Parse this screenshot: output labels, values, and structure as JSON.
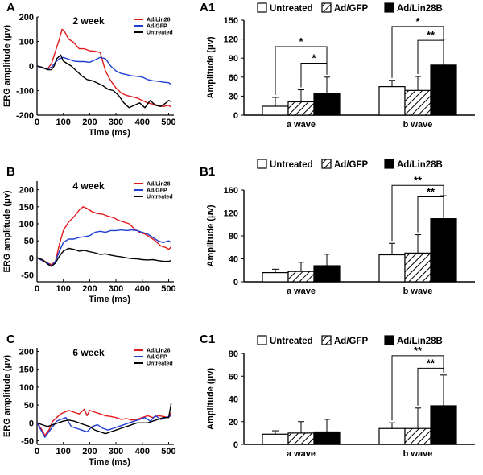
{
  "figure": {
    "panels": [
      "A",
      "A1",
      "B",
      "B1",
      "C",
      "C1"
    ]
  },
  "colors": {
    "series_red": "#e31a1c",
    "series_blue": "#1f3fd1",
    "series_black": "#000000",
    "hatch": "#000000"
  },
  "chart_data": [
    {
      "id": "A",
      "type": "line",
      "panel_label": "A",
      "title": "2 week",
      "xlabel": "Time (ms)",
      "ylabel": "ERG amplitude (μv)",
      "xlim": [
        0,
        520
      ],
      "ylim": [
        -200,
        200
      ],
      "xticks": [
        "0",
        "100",
        "200",
        "300",
        "400",
        "500"
      ],
      "xtick_values": [
        0,
        100,
        200,
        300,
        400,
        500
      ],
      "yticks": [
        "-200",
        "-100",
        "0",
        "100",
        "200"
      ],
      "ytick_values": [
        -200,
        -100,
        0,
        100,
        200
      ],
      "series": [
        {
          "name": "Ad/Lin28",
          "color": "#e31a1c",
          "x": [
            0,
            20,
            40,
            55,
            70,
            85,
            95,
            105,
            120,
            140,
            160,
            180,
            200,
            220,
            240,
            260,
            280,
            300,
            320,
            340,
            360,
            380,
            400,
            420,
            440,
            460,
            480,
            500,
            510
          ],
          "y": [
            0,
            -8,
            -12,
            10,
            60,
            110,
            150,
            140,
            110,
            95,
            70,
            70,
            62,
            60,
            55,
            -20,
            -60,
            -90,
            -110,
            -120,
            -125,
            -130,
            -140,
            -150,
            -155,
            -160,
            -165,
            -160,
            -168
          ]
        },
        {
          "name": "Ad/GFP",
          "color": "#1f3fd1",
          "x": [
            0,
            20,
            40,
            55,
            70,
            85,
            100,
            120,
            140,
            160,
            180,
            200,
            220,
            240,
            260,
            280,
            300,
            320,
            340,
            360,
            380,
            400,
            420,
            440,
            460,
            480,
            500,
            510
          ],
          "y": [
            0,
            -8,
            -12,
            -5,
            15,
            30,
            35,
            28,
            20,
            18,
            18,
            15,
            25,
            35,
            30,
            0,
            -20,
            -30,
            -35,
            -40,
            -42,
            -45,
            -55,
            -60,
            -62,
            -66,
            -68,
            -75
          ]
        },
        {
          "name": "Untreated",
          "color": "#000000",
          "x": [
            0,
            20,
            40,
            55,
            65,
            75,
            90,
            100,
            115,
            130,
            150,
            170,
            190,
            210,
            230,
            250,
            270,
            290,
            310,
            330,
            350,
            370,
            390,
            410,
            430,
            450,
            470,
            490,
            500,
            510
          ],
          "y": [
            0,
            -5,
            -15,
            -15,
            0,
            30,
            45,
            20,
            10,
            0,
            -20,
            -40,
            -55,
            -60,
            -70,
            -80,
            -95,
            -100,
            -120,
            -150,
            -170,
            -160,
            -150,
            -170,
            -140,
            -160,
            -165,
            -150,
            -140,
            -145
          ]
        }
      ],
      "legend": [
        "Ad/Lin28",
        "Ad/GFP",
        "Untreated"
      ]
    },
    {
      "id": "A1",
      "type": "bar",
      "panel_label": "A1",
      "ylabel": "Amplitude (μv)",
      "ylim": [
        0,
        150
      ],
      "yticks": [
        "0",
        "30",
        "60",
        "90",
        "120",
        "150"
      ],
      "ytick_values": [
        0,
        30,
        60,
        90,
        120,
        150
      ],
      "categories": [
        "a wave",
        "b wave"
      ],
      "legend": [
        "Untreated",
        "Ad/GFP",
        "Ad/Lin28B"
      ],
      "series": [
        {
          "name": "Untreated",
          "fill": "white",
          "values": [
            14,
            45
          ],
          "errors": [
            14,
            10
          ]
        },
        {
          "name": "Ad/GFP",
          "fill": "hatch",
          "values": [
            21,
            39
          ],
          "errors": [
            19,
            22
          ]
        },
        {
          "name": "Ad/Lin28B",
          "fill": "black",
          "values": [
            34,
            79
          ],
          "errors": [
            26,
            41
          ]
        }
      ],
      "significance": [
        {
          "category": "a wave",
          "from": "Untreated",
          "to": "Ad/Lin28B",
          "label": "*",
          "level": 108
        },
        {
          "category": "a wave",
          "from": "Ad/GFP",
          "to": "Ad/Lin28B",
          "label": "*",
          "level": 82
        },
        {
          "category": "b wave",
          "from": "Untreated",
          "to": "Ad/Lin28B",
          "label": "*",
          "level": 140
        },
        {
          "category": "b wave",
          "from": "Ad/GFP",
          "to": "Ad/Lin28B",
          "label": "**",
          "level": 118
        }
      ]
    },
    {
      "id": "B",
      "type": "line",
      "panel_label": "B",
      "title": "4 week",
      "xlabel": "Time (ms)",
      "ylabel": "ERG amplitude (μv)",
      "xlim": [
        0,
        520
      ],
      "ylim": [
        -70,
        225
      ],
      "xticks": [
        "0",
        "100",
        "200",
        "300",
        "400",
        "500"
      ],
      "xtick_values": [
        0,
        100,
        200,
        300,
        400,
        500
      ],
      "yticks": [
        "-50",
        "0",
        "50",
        "100",
        "150",
        "200"
      ],
      "ytick_values": [
        -50,
        0,
        50,
        100,
        150,
        200
      ],
      "series": [
        {
          "name": "Ad/Lin28",
          "color": "#e31a1c",
          "x": [
            0,
            20,
            40,
            55,
            70,
            85,
            100,
            120,
            140,
            160,
            175,
            190,
            210,
            230,
            250,
            270,
            290,
            310,
            330,
            350,
            370,
            390,
            410,
            430,
            450,
            470,
            490,
            500,
            510
          ],
          "y": [
            0,
            -5,
            -15,
            -20,
            -10,
            40,
            80,
            105,
            120,
            140,
            150,
            145,
            135,
            130,
            128,
            122,
            118,
            110,
            105,
            100,
            85,
            75,
            70,
            60,
            50,
            35,
            30,
            25,
            32
          ]
        },
        {
          "name": "Ad/GFP",
          "color": "#1f3fd1",
          "x": [
            0,
            20,
            40,
            55,
            70,
            85,
            100,
            120,
            140,
            160,
            180,
            200,
            220,
            240,
            260,
            280,
            300,
            320,
            340,
            360,
            380,
            400,
            420,
            440,
            460,
            480,
            500,
            510
          ],
          "y": [
            0,
            -8,
            -15,
            -25,
            -10,
            20,
            45,
            55,
            55,
            60,
            62,
            65,
            75,
            78,
            75,
            80,
            80,
            82,
            80,
            82,
            80,
            75,
            70,
            60,
            50,
            45,
            50,
            45
          ]
        },
        {
          "name": "Untreated",
          "color": "#000000",
          "x": [
            0,
            20,
            40,
            55,
            70,
            85,
            100,
            120,
            140,
            160,
            180,
            200,
            220,
            240,
            260,
            280,
            300,
            320,
            340,
            360,
            380,
            400,
            420,
            440,
            460,
            480,
            500,
            510
          ],
          "y": [
            0,
            -5,
            -18,
            -25,
            -15,
            5,
            20,
            28,
            25,
            20,
            22,
            18,
            15,
            10,
            12,
            8,
            5,
            3,
            0,
            -2,
            -3,
            -5,
            -6,
            -5,
            -8,
            -10,
            -10,
            -8
          ]
        }
      ],
      "legend": [
        "Ad/Lin28",
        "Ad/GFP",
        "Untreated"
      ]
    },
    {
      "id": "B1",
      "type": "bar",
      "panel_label": "B1",
      "ylabel": "Amplitude (μv)",
      "ylim": [
        0,
        160
      ],
      "yticks": [
        "0",
        "40",
        "80",
        "120",
        "160"
      ],
      "ytick_values": [
        0,
        40,
        80,
        120,
        160
      ],
      "categories": [
        "a wave",
        "b wave"
      ],
      "legend": [
        "Untreated",
        "Ad/GFP",
        "Ad/Lin28B"
      ],
      "series": [
        {
          "name": "Untreated",
          "fill": "white",
          "values": [
            16,
            47
          ],
          "errors": [
            6,
            20
          ]
        },
        {
          "name": "Ad/GFP",
          "fill": "hatch",
          "values": [
            18,
            50
          ],
          "errors": [
            16,
            32
          ]
        },
        {
          "name": "Ad/Lin28B",
          "fill": "black",
          "values": [
            28,
            110
          ],
          "errors": [
            20,
            40
          ]
        }
      ],
      "significance": [
        {
          "category": "b wave",
          "from": "Untreated",
          "to": "Ad/Lin28B",
          "label": "**",
          "level": 168
        },
        {
          "category": "b wave",
          "from": "Ad/GFP",
          "to": "Ad/Lin28B",
          "label": "**",
          "level": 148
        }
      ]
    },
    {
      "id": "C",
      "type": "line",
      "panel_label": "C",
      "title": "6 week",
      "xlabel": "Time (ms)",
      "ylabel": "ERG amplitude (μv)",
      "xlim": [
        0,
        520
      ],
      "ylim": [
        -60,
        210
      ],
      "xticks": [
        "0",
        "100",
        "200",
        "300",
        "400",
        "500"
      ],
      "xtick_values": [
        0,
        100,
        200,
        300,
        400,
        500
      ],
      "yticks": [
        "-50",
        "0",
        "50",
        "100",
        "150",
        "200"
      ],
      "ytick_values": [
        -50,
        0,
        50,
        100,
        150,
        200
      ],
      "series": [
        {
          "name": "Ad/Lin28",
          "color": "#e31a1c",
          "x": [
            0,
            15,
            30,
            45,
            60,
            75,
            90,
            105,
            120,
            140,
            160,
            180,
            190,
            200,
            220,
            240,
            260,
            280,
            300,
            320,
            340,
            360,
            380,
            400,
            420,
            440,
            460,
            480,
            500,
            510
          ],
          "y": [
            0,
            -15,
            -35,
            -20,
            5,
            15,
            25,
            30,
            35,
            30,
            25,
            38,
            20,
            35,
            30,
            25,
            20,
            18,
            15,
            10,
            12,
            8,
            10,
            15,
            20,
            15,
            20,
            18,
            15,
            30
          ]
        },
        {
          "name": "Ad/GFP",
          "color": "#1f3fd1",
          "x": [
            0,
            15,
            30,
            45,
            60,
            75,
            90,
            110,
            130,
            150,
            170,
            190,
            210,
            230,
            250,
            270,
            290,
            310,
            330,
            350,
            370,
            390,
            410,
            430,
            450,
            470,
            490,
            510
          ],
          "y": [
            0,
            -20,
            -40,
            -25,
            -10,
            5,
            10,
            15,
            -10,
            -15,
            -20,
            -25,
            -10,
            -5,
            -15,
            -20,
            -15,
            -10,
            -5,
            0,
            5,
            10,
            15,
            5,
            20,
            10,
            15,
            20
          ]
        },
        {
          "name": "Untreated",
          "color": "#000000",
          "x": [
            0,
            20,
            40,
            60,
            80,
            100,
            120,
            140,
            160,
            180,
            200,
            220,
            240,
            260,
            280,
            300,
            320,
            340,
            360,
            380,
            400,
            420,
            440,
            460,
            480,
            500,
            510
          ],
          "y": [
            0,
            -5,
            -10,
            -5,
            0,
            5,
            8,
            5,
            0,
            -5,
            -10,
            -20,
            -25,
            -30,
            -25,
            -20,
            -15,
            -10,
            -5,
            0,
            0,
            0,
            5,
            10,
            15,
            15,
            55
          ]
        }
      ],
      "legend": [
        "Ad/Lin28",
        "Ad/GFP",
        "Untreated"
      ]
    },
    {
      "id": "C1",
      "type": "bar",
      "panel_label": "C1",
      "ylabel": "Amplitude (μv)",
      "ylim": [
        0,
        80
      ],
      "yticks": [
        "0",
        "20",
        "40",
        "60",
        "80"
      ],
      "ytick_values": [
        0,
        20,
        40,
        60,
        80
      ],
      "categories": [
        "a wave",
        "b wave"
      ],
      "legend": [
        "Untreated",
        "Ad/GFP",
        "Ad/Lin28B"
      ],
      "series": [
        {
          "name": "Untreated",
          "fill": "white",
          "values": [
            9,
            14
          ],
          "errors": [
            3,
            5
          ]
        },
        {
          "name": "Ad/GFP",
          "fill": "hatch",
          "values": [
            10,
            14
          ],
          "errors": [
            10,
            18
          ]
        },
        {
          "name": "Ad/Lin28B",
          "fill": "black",
          "values": [
            11,
            34
          ],
          "errors": [
            11,
            27
          ]
        }
      ],
      "significance": [
        {
          "category": "b wave",
          "from": "Untreated",
          "to": "Ad/Lin28B",
          "label": "**",
          "level": 78
        },
        {
          "category": "b wave",
          "from": "Ad/GFP",
          "to": "Ad/Lin28B",
          "label": "**",
          "level": 67
        }
      ]
    }
  ]
}
